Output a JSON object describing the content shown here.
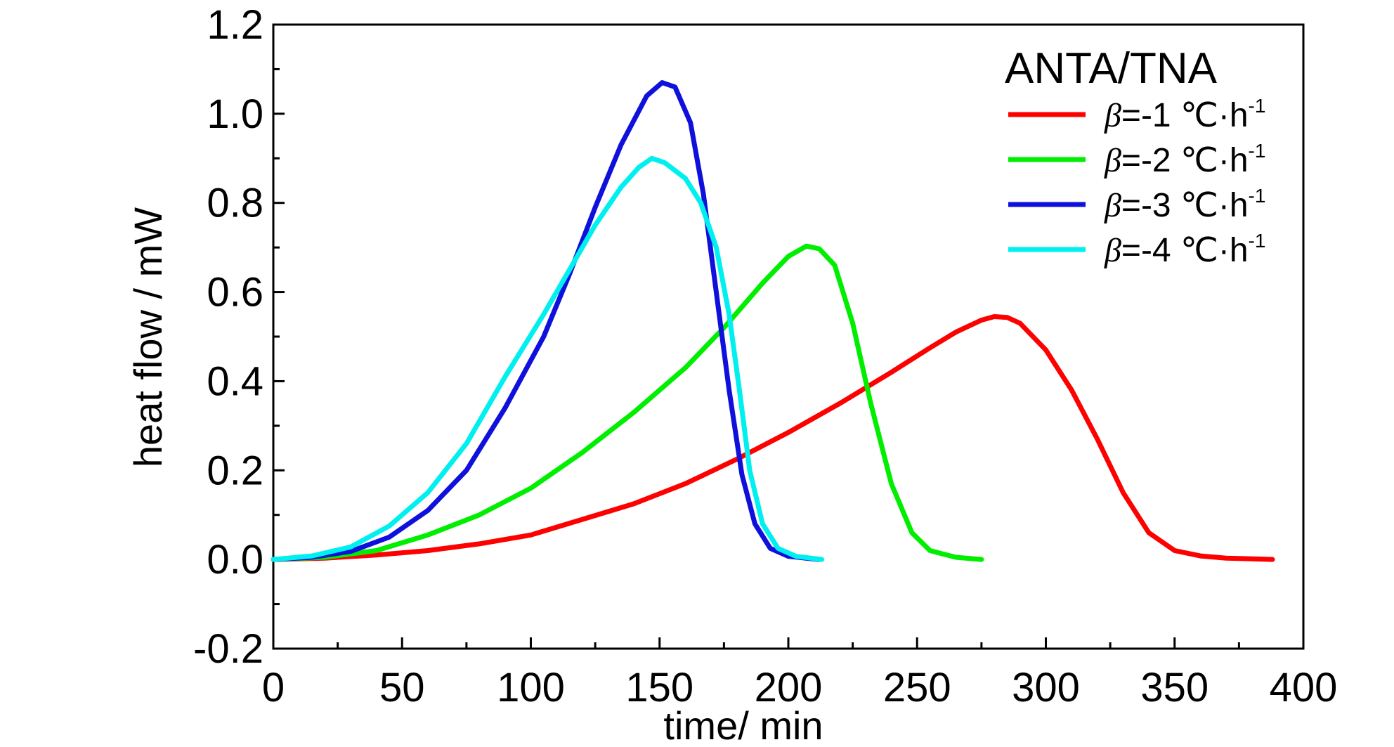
{
  "chart_data": {
    "type": "line",
    "title": "",
    "xlabel": "time/ min",
    "ylabel": "heat flow / mW",
    "xlim": [
      0,
      400
    ],
    "ylim": [
      -0.2,
      1.2
    ],
    "x_ticks": [
      0,
      50,
      100,
      150,
      200,
      250,
      300,
      350,
      400
    ],
    "x_tick_labels": [
      "0",
      "50",
      "100",
      "150",
      "200",
      "250",
      "300",
      "350",
      "400"
    ],
    "y_ticks": [
      -0.2,
      0.0,
      0.2,
      0.4,
      0.6,
      0.8,
      1.0,
      1.2
    ],
    "y_tick_labels": [
      "-0.2",
      "0.0",
      "0.2",
      "0.4",
      "0.6",
      "0.8",
      "1.0",
      "1.2"
    ],
    "grid": false,
    "legend": {
      "title": "ANTA/TNA",
      "placement": "top-right",
      "entries": [
        {
          "symbol": "β",
          "text": "=-1 ℃·h",
          "sup": "-1"
        },
        {
          "symbol": "β",
          "text": "=-2 ℃·h",
          "sup": "-1"
        },
        {
          "symbol": "β",
          "text": "=-3 ℃·h",
          "sup": "-1"
        },
        {
          "symbol": "β",
          "text": "=-4 ℃·h",
          "sup": "-1"
        }
      ]
    },
    "series": [
      {
        "name": "β=-1 ℃·h-1",
        "color": "#ff0000",
        "points": [
          [
            0,
            0
          ],
          [
            20,
            0.003
          ],
          [
            40,
            0.01
          ],
          [
            60,
            0.02
          ],
          [
            80,
            0.035
          ],
          [
            100,
            0.055
          ],
          [
            120,
            0.09
          ],
          [
            140,
            0.125
          ],
          [
            160,
            0.17
          ],
          [
            180,
            0.225
          ],
          [
            200,
            0.285
          ],
          [
            220,
            0.35
          ],
          [
            240,
            0.42
          ],
          [
            255,
            0.475
          ],
          [
            265,
            0.51
          ],
          [
            275,
            0.537
          ],
          [
            280,
            0.545
          ],
          [
            285,
            0.543
          ],
          [
            290,
            0.53
          ],
          [
            300,
            0.47
          ],
          [
            310,
            0.38
          ],
          [
            320,
            0.27
          ],
          [
            330,
            0.15
          ],
          [
            340,
            0.06
          ],
          [
            350,
            0.02
          ],
          [
            360,
            0.008
          ],
          [
            370,
            0.003
          ],
          [
            388,
            0.0
          ]
        ]
      },
      {
        "name": "β=-2 ℃·h-1",
        "color": "#00ee00",
        "points": [
          [
            0,
            0
          ],
          [
            20,
            0.005
          ],
          [
            40,
            0.02
          ],
          [
            60,
            0.055
          ],
          [
            80,
            0.1
          ],
          [
            100,
            0.16
          ],
          [
            120,
            0.24
          ],
          [
            140,
            0.33
          ],
          [
            160,
            0.43
          ],
          [
            175,
            0.52
          ],
          [
            190,
            0.62
          ],
          [
            200,
            0.68
          ],
          [
            207,
            0.703
          ],
          [
            212,
            0.697
          ],
          [
            218,
            0.66
          ],
          [
            225,
            0.53
          ],
          [
            232,
            0.35
          ],
          [
            240,
            0.17
          ],
          [
            248,
            0.06
          ],
          [
            255,
            0.02
          ],
          [
            265,
            0.005
          ],
          [
            275,
            0.0
          ]
        ]
      },
      {
        "name": "β=-3 ℃·h-1",
        "color": "#1010dd",
        "points": [
          [
            0,
            0
          ],
          [
            15,
            0.005
          ],
          [
            30,
            0.018
          ],
          [
            45,
            0.05
          ],
          [
            60,
            0.11
          ],
          [
            75,
            0.2
          ],
          [
            90,
            0.34
          ],
          [
            105,
            0.5
          ],
          [
            115,
            0.64
          ],
          [
            125,
            0.79
          ],
          [
            135,
            0.93
          ],
          [
            145,
            1.04
          ],
          [
            151,
            1.07
          ],
          [
            156,
            1.06
          ],
          [
            162,
            0.98
          ],
          [
            167,
            0.82
          ],
          [
            172,
            0.6
          ],
          [
            177,
            0.38
          ],
          [
            182,
            0.19
          ],
          [
            187,
            0.08
          ],
          [
            193,
            0.025
          ],
          [
            200,
            0.007
          ],
          [
            212,
            0.0
          ]
        ]
      },
      {
        "name": "β=-4 ℃·h-1",
        "color": "#00f0f0",
        "points": [
          [
            0,
            0
          ],
          [
            15,
            0.008
          ],
          [
            30,
            0.028
          ],
          [
            45,
            0.075
          ],
          [
            60,
            0.15
          ],
          [
            75,
            0.26
          ],
          [
            90,
            0.41
          ],
          [
            105,
            0.55
          ],
          [
            115,
            0.65
          ],
          [
            125,
            0.75
          ],
          [
            135,
            0.835
          ],
          [
            142,
            0.88
          ],
          [
            147,
            0.9
          ],
          [
            152,
            0.89
          ],
          [
            160,
            0.855
          ],
          [
            166,
            0.8
          ],
          [
            172,
            0.7
          ],
          [
            177,
            0.55
          ],
          [
            181,
            0.38
          ],
          [
            185,
            0.2
          ],
          [
            190,
            0.08
          ],
          [
            196,
            0.025
          ],
          [
            203,
            0.007
          ],
          [
            213,
            0.0
          ]
        ]
      }
    ]
  }
}
